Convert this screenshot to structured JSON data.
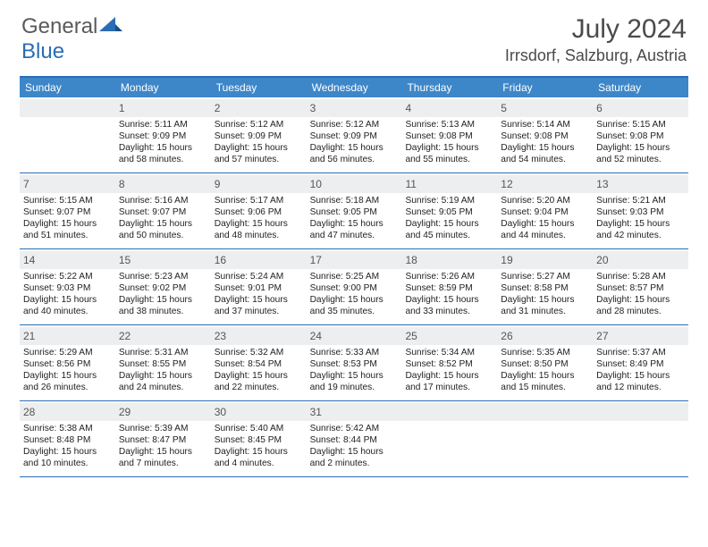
{
  "brand": {
    "part1": "General",
    "part2": "Blue"
  },
  "title": "July 2024",
  "location": "Irrsdorf, Salzburg, Austria",
  "colors": {
    "header_bg": "#3d87c9",
    "header_fg": "#ffffff",
    "rule": "#2a6db3",
    "daynum_bg": "#eceeef",
    "logo_gray": "#5a5a5a",
    "logo_blue": "#2a6db3"
  },
  "day_headers": [
    "Sunday",
    "Monday",
    "Tuesday",
    "Wednesday",
    "Thursday",
    "Friday",
    "Saturday"
  ],
  "weeks": [
    [
      {
        "n": "",
        "sunrise": "",
        "sunset": "",
        "daylight": ""
      },
      {
        "n": "1",
        "sunrise": "5:11 AM",
        "sunset": "9:09 PM",
        "daylight": "15 hours and 58 minutes."
      },
      {
        "n": "2",
        "sunrise": "5:12 AM",
        "sunset": "9:09 PM",
        "daylight": "15 hours and 57 minutes."
      },
      {
        "n": "3",
        "sunrise": "5:12 AM",
        "sunset": "9:09 PM",
        "daylight": "15 hours and 56 minutes."
      },
      {
        "n": "4",
        "sunrise": "5:13 AM",
        "sunset": "9:08 PM",
        "daylight": "15 hours and 55 minutes."
      },
      {
        "n": "5",
        "sunrise": "5:14 AM",
        "sunset": "9:08 PM",
        "daylight": "15 hours and 54 minutes."
      },
      {
        "n": "6",
        "sunrise": "5:15 AM",
        "sunset": "9:08 PM",
        "daylight": "15 hours and 52 minutes."
      }
    ],
    [
      {
        "n": "7",
        "sunrise": "5:15 AM",
        "sunset": "9:07 PM",
        "daylight": "15 hours and 51 minutes."
      },
      {
        "n": "8",
        "sunrise": "5:16 AM",
        "sunset": "9:07 PM",
        "daylight": "15 hours and 50 minutes."
      },
      {
        "n": "9",
        "sunrise": "5:17 AM",
        "sunset": "9:06 PM",
        "daylight": "15 hours and 48 minutes."
      },
      {
        "n": "10",
        "sunrise": "5:18 AM",
        "sunset": "9:05 PM",
        "daylight": "15 hours and 47 minutes."
      },
      {
        "n": "11",
        "sunrise": "5:19 AM",
        "sunset": "9:05 PM",
        "daylight": "15 hours and 45 minutes."
      },
      {
        "n": "12",
        "sunrise": "5:20 AM",
        "sunset": "9:04 PM",
        "daylight": "15 hours and 44 minutes."
      },
      {
        "n": "13",
        "sunrise": "5:21 AM",
        "sunset": "9:03 PM",
        "daylight": "15 hours and 42 minutes."
      }
    ],
    [
      {
        "n": "14",
        "sunrise": "5:22 AM",
        "sunset": "9:03 PM",
        "daylight": "15 hours and 40 minutes."
      },
      {
        "n": "15",
        "sunrise": "5:23 AM",
        "sunset": "9:02 PM",
        "daylight": "15 hours and 38 minutes."
      },
      {
        "n": "16",
        "sunrise": "5:24 AM",
        "sunset": "9:01 PM",
        "daylight": "15 hours and 37 minutes."
      },
      {
        "n": "17",
        "sunrise": "5:25 AM",
        "sunset": "9:00 PM",
        "daylight": "15 hours and 35 minutes."
      },
      {
        "n": "18",
        "sunrise": "5:26 AM",
        "sunset": "8:59 PM",
        "daylight": "15 hours and 33 minutes."
      },
      {
        "n": "19",
        "sunrise": "5:27 AM",
        "sunset": "8:58 PM",
        "daylight": "15 hours and 31 minutes."
      },
      {
        "n": "20",
        "sunrise": "5:28 AM",
        "sunset": "8:57 PM",
        "daylight": "15 hours and 28 minutes."
      }
    ],
    [
      {
        "n": "21",
        "sunrise": "5:29 AM",
        "sunset": "8:56 PM",
        "daylight": "15 hours and 26 minutes."
      },
      {
        "n": "22",
        "sunrise": "5:31 AM",
        "sunset": "8:55 PM",
        "daylight": "15 hours and 24 minutes."
      },
      {
        "n": "23",
        "sunrise": "5:32 AM",
        "sunset": "8:54 PM",
        "daylight": "15 hours and 22 minutes."
      },
      {
        "n": "24",
        "sunrise": "5:33 AM",
        "sunset": "8:53 PM",
        "daylight": "15 hours and 19 minutes."
      },
      {
        "n": "25",
        "sunrise": "5:34 AM",
        "sunset": "8:52 PM",
        "daylight": "15 hours and 17 minutes."
      },
      {
        "n": "26",
        "sunrise": "5:35 AM",
        "sunset": "8:50 PM",
        "daylight": "15 hours and 15 minutes."
      },
      {
        "n": "27",
        "sunrise": "5:37 AM",
        "sunset": "8:49 PM",
        "daylight": "15 hours and 12 minutes."
      }
    ],
    [
      {
        "n": "28",
        "sunrise": "5:38 AM",
        "sunset": "8:48 PM",
        "daylight": "15 hours and 10 minutes."
      },
      {
        "n": "29",
        "sunrise": "5:39 AM",
        "sunset": "8:47 PM",
        "daylight": "15 hours and 7 minutes."
      },
      {
        "n": "30",
        "sunrise": "5:40 AM",
        "sunset": "8:45 PM",
        "daylight": "15 hours and 4 minutes."
      },
      {
        "n": "31",
        "sunrise": "5:42 AM",
        "sunset": "8:44 PM",
        "daylight": "15 hours and 2 minutes."
      },
      {
        "n": "",
        "sunrise": "",
        "sunset": "",
        "daylight": ""
      },
      {
        "n": "",
        "sunrise": "",
        "sunset": "",
        "daylight": ""
      },
      {
        "n": "",
        "sunrise": "",
        "sunset": "",
        "daylight": ""
      }
    ]
  ],
  "labels": {
    "sunrise": "Sunrise:",
    "sunset": "Sunset:",
    "daylight": "Daylight:"
  }
}
